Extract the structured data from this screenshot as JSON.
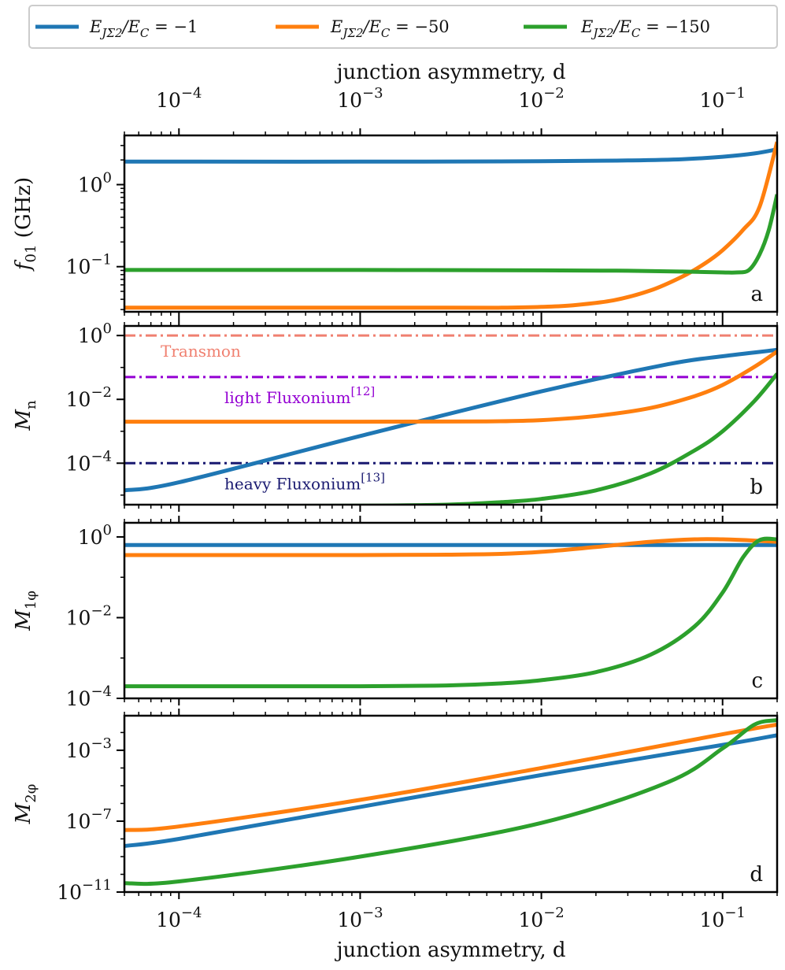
{
  "chart_data": [
    {
      "type": "line",
      "panel": "a",
      "x_scale": "log",
      "xlabel": "junction asymmetry, d",
      "xlim": [
        5e-05,
        0.2
      ],
      "ylabel": "f01 (GHz)",
      "y_scale": "log",
      "ylim_log10": [
        -1.55,
        0.6
      ],
      "series": [
        {
          "name": "E_JΣ2/E_C = -1",
          "color": "#1f77b4",
          "x": [
            5e-05,
            0.0001,
            0.001,
            0.01,
            0.03,
            0.06,
            0.1,
            0.15,
            0.2
          ],
          "log10_y": [
            0.28,
            0.28,
            0.28,
            0.285,
            0.295,
            0.31,
            0.34,
            0.38,
            0.43
          ]
        },
        {
          "name": "E_JΣ2/E_C = -50",
          "color": "#ff7f0e",
          "x": [
            5e-05,
            0.0001,
            0.001,
            0.003,
            0.006,
            0.01,
            0.015,
            0.025,
            0.04,
            0.06,
            0.08,
            0.1,
            0.13,
            0.16,
            0.2
          ],
          "log10_y": [
            -1.5,
            -1.5,
            -1.5,
            -1.5,
            -1.5,
            -1.49,
            -1.47,
            -1.41,
            -1.29,
            -1.12,
            -0.96,
            -0.8,
            -0.55,
            -0.27,
            0.52
          ]
        },
        {
          "name": "E_JΣ2/E_C = -150",
          "color": "#2ca02c",
          "x": [
            5e-05,
            0.0001,
            0.001,
            0.01,
            0.03,
            0.06,
            0.1,
            0.12,
            0.14,
            0.16,
            0.18,
            0.2
          ],
          "log10_y": [
            -1.04,
            -1.04,
            -1.04,
            -1.045,
            -1.05,
            -1.06,
            -1.07,
            -1.07,
            -1.04,
            -0.85,
            -0.55,
            -0.12
          ]
        }
      ],
      "y_ticks": [
        "10^0",
        "10^-1"
      ],
      "annotation": "a"
    },
    {
      "type": "line",
      "panel": "b",
      "x_scale": "log",
      "xlim": [
        5e-05,
        0.2
      ],
      "ylabel": "M_n",
      "y_scale": "log",
      "ylim_log10": [
        -5.3,
        0.3
      ],
      "series": [
        {
          "name": "E_JΣ2/E_C = -1",
          "color": "#1f77b4",
          "x": [
            5e-05,
            0.0001,
            0.001,
            0.01,
            0.05,
            0.1,
            0.2
          ],
          "log10_y": [
            -4.85,
            -4.6,
            -3.15,
            -1.75,
            -0.9,
            -0.65,
            -0.45
          ]
        },
        {
          "name": "E_JΣ2/E_C = -50",
          "color": "#ff7f0e",
          "x": [
            5e-05,
            0.0001,
            0.001,
            0.005,
            0.01,
            0.02,
            0.04,
            0.07,
            0.1,
            0.15,
            0.2
          ],
          "log10_y": [
            -2.7,
            -2.7,
            -2.7,
            -2.69,
            -2.65,
            -2.52,
            -2.27,
            -1.9,
            -1.55,
            -0.98,
            -0.5
          ]
        },
        {
          "name": "E_JΣ2/E_C = -150",
          "color": "#2ca02c",
          "x": [
            5e-05,
            0.0001,
            0.001,
            0.003,
            0.006,
            0.01,
            0.02,
            0.04,
            0.07,
            0.1,
            0.15,
            0.2
          ],
          "log10_y": [
            -5.35,
            -5.35,
            -5.33,
            -5.3,
            -5.22,
            -5.12,
            -4.85,
            -4.32,
            -3.6,
            -3.0,
            -2.05,
            -1.2
          ]
        }
      ],
      "reference_lines": [
        {
          "label": "Transmon",
          "log10_y": 0,
          "color": "#f08070"
        },
        {
          "label": "light Fluxonium",
          "ref": "[12]",
          "log10_y": -1.3,
          "color": "#9400d3"
        },
        {
          "label": "heavy Fluxonium",
          "ref": "[13]",
          "log10_y": -4.0,
          "color": "#191970"
        }
      ],
      "y_ticks": [
        "10^0",
        "10^-2",
        "10^-4"
      ],
      "annotation": "b"
    },
    {
      "type": "line",
      "panel": "c",
      "x_scale": "log",
      "xlim": [
        5e-05,
        0.2
      ],
      "ylabel": "M_1φ",
      "y_scale": "log",
      "ylim_log10": [
        -4.0,
        0.35
      ],
      "series": [
        {
          "name": "E_JΣ2/E_C = -1",
          "color": "#1f77b4",
          "x": [
            5e-05,
            0.2
          ],
          "log10_y": [
            -0.2,
            -0.2
          ]
        },
        {
          "name": "E_JΣ2/E_C = -50",
          "color": "#ff7f0e",
          "x": [
            5e-05,
            0.0001,
            0.001,
            0.003,
            0.006,
            0.01,
            0.02,
            0.04,
            0.07,
            0.1,
            0.15,
            0.2
          ],
          "log10_y": [
            -0.45,
            -0.45,
            -0.45,
            -0.44,
            -0.42,
            -0.37,
            -0.25,
            -0.12,
            -0.06,
            -0.06,
            -0.09,
            -0.12
          ]
        },
        {
          "name": "E_JΣ2/E_C = -150",
          "color": "#2ca02c",
          "x": [
            5e-05,
            0.0001,
            0.001,
            0.003,
            0.006,
            0.01,
            0.02,
            0.04,
            0.07,
            0.1,
            0.13,
            0.16,
            0.2
          ],
          "log10_y": [
            -3.7,
            -3.7,
            -3.7,
            -3.68,
            -3.63,
            -3.55,
            -3.35,
            -2.92,
            -2.22,
            -1.38,
            -0.5,
            -0.08,
            -0.06
          ]
        }
      ],
      "y_ticks": [
        "10^0",
        "10^-2",
        "10^-4"
      ],
      "annotation": "c"
    },
    {
      "type": "line",
      "panel": "d",
      "x_scale": "log",
      "xlabel": "junction asymmetry, d",
      "xlim": [
        5e-05,
        0.2
      ],
      "ylabel": "M_2φ",
      "y_scale": "log",
      "ylim_log10": [
        -11.0,
        -1.05
      ],
      "series": [
        {
          "name": "E_JΣ2/E_C = -1",
          "color": "#1f77b4",
          "x": [
            5e-05,
            0.0001,
            0.001,
            0.01,
            0.1,
            0.2
          ],
          "log10_y": [
            -8.4,
            -8.0,
            -6.2,
            -4.4,
            -2.7,
            -2.15
          ]
        },
        {
          "name": "E_JΣ2/E_C = -50",
          "color": "#ff7f0e",
          "x": [
            5e-05,
            0.0001,
            0.001,
            0.01,
            0.1,
            0.2
          ],
          "log10_y": [
            -7.5,
            -7.3,
            -5.8,
            -4.0,
            -2.1,
            -1.55
          ]
        },
        {
          "name": "E_JΣ2/E_C = -150",
          "color": "#2ca02c",
          "x": [
            5e-05,
            0.0001,
            0.001,
            0.01,
            0.05,
            0.1,
            0.15,
            0.2
          ],
          "log10_y": [
            -10.5,
            -10.4,
            -9.0,
            -7.1,
            -4.8,
            -2.9,
            -1.55,
            -1.3
          ]
        }
      ],
      "y_ticks": [
        "10^-3",
        "10^-7",
        "10^-11"
      ],
      "annotation": "d"
    }
  ],
  "legend": [
    {
      "label_main": "E",
      "label_sub": "JΣ2",
      "label_rest": "/E",
      "label_sub2": "C",
      "label_value": " = −1",
      "color": "#1f77b4"
    },
    {
      "label_main": "E",
      "label_sub": "JΣ2",
      "label_rest": "/E",
      "label_sub2": "C",
      "label_value": " = −50",
      "color": "#ff7f0e"
    },
    {
      "label_main": "E",
      "label_sub": "JΣ2",
      "label_rest": "/E",
      "label_sub2": "C",
      "label_value": " = −150",
      "color": "#2ca02c"
    }
  ],
  "top_axis": {
    "label": "junction asymmetry, d",
    "ticks": [
      {
        "base": "10",
        "exp": "−4",
        "value": 0.0001
      },
      {
        "base": "10",
        "exp": "−3",
        "value": 0.001
      },
      {
        "base": "10",
        "exp": "−2",
        "value": 0.01
      },
      {
        "base": "10",
        "exp": "−1",
        "value": 0.1
      }
    ]
  },
  "bottom_axis": {
    "label": "junction asymmetry, d",
    "ticks": [
      {
        "base": "10",
        "exp": "−4",
        "value": 0.0001
      },
      {
        "base": "10",
        "exp": "−3",
        "value": 0.001
      },
      {
        "base": "10",
        "exp": "−2",
        "value": 0.01
      },
      {
        "base": "10",
        "exp": "−1",
        "value": 0.1
      }
    ]
  },
  "panel_y_ticks": {
    "a": [
      {
        "base": "10",
        "exp": "0",
        "value": 0
      },
      {
        "base": "10",
        "exp": "−1",
        "value": -1
      }
    ],
    "b": [
      {
        "base": "10",
        "exp": "0",
        "value": 0
      },
      {
        "base": "10",
        "exp": "−2",
        "value": -2
      },
      {
        "base": "10",
        "exp": "−4",
        "value": -4
      }
    ],
    "c": [
      {
        "base": "10",
        "exp": "0",
        "value": 0
      },
      {
        "base": "10",
        "exp": "−2",
        "value": -2
      },
      {
        "base": "10",
        "exp": "−4",
        "value": -4
      }
    ],
    "d": [
      {
        "base": "10",
        "exp": "−3",
        "value": -3
      },
      {
        "base": "10",
        "exp": "−7",
        "value": -7
      },
      {
        "base": "10",
        "exp": "−11",
        "value": -11
      }
    ]
  },
  "panel_ylabels": {
    "a": {
      "main": "f",
      "sub": "01",
      "rest": " (GHz)"
    },
    "b": {
      "main": "M",
      "sub": "n"
    },
    "c": {
      "main": "M",
      "sub": "1φ"
    },
    "d": {
      "main": "M",
      "sub": "2φ"
    }
  },
  "reference_text": {
    "transmon": "Transmon",
    "light": "light Fluxonium",
    "light_ref": "[12]",
    "heavy": "heavy Fluxonium",
    "heavy_ref": "[13]"
  }
}
